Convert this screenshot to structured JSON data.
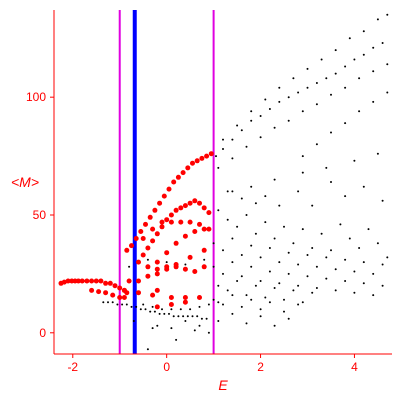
{
  "chart_data": {
    "type": "scatter",
    "title": "",
    "xlabel": "E",
    "ylabel": "<M>",
    "xlim": [
      -2.4,
      4.8
    ],
    "ylim": [
      -9,
      137
    ],
    "x_ticks": [
      -2,
      0,
      2,
      4
    ],
    "y_ticks": [
      0,
      50,
      100
    ],
    "x_tick_labels": [
      "-2",
      "0",
      "2",
      "4"
    ],
    "y_tick_labels": [
      "0",
      "50",
      "100"
    ],
    "grid": false,
    "colors": {
      "axis": "#ff0000",
      "points_black": "#000000",
      "points_red": "#ff0000",
      "line_blue": "#0000ff",
      "line_magenta": "#e000e0"
    },
    "vertical_lines": [
      {
        "x": -1.0,
        "color": "#e000e0"
      },
      {
        "x": -0.68,
        "color": "#0000ff"
      },
      {
        "x": 1.0,
        "color": "#e000e0"
      }
    ],
    "series": [
      {
        "color": "#ff0000",
        "points": [
          [
            -2.25,
            21
          ],
          [
            -2.18,
            21.5
          ],
          [
            -2.1,
            22
          ],
          [
            -2.02,
            22
          ],
          [
            -1.95,
            22
          ],
          [
            -1.88,
            22
          ],
          [
            -1.8,
            22
          ],
          [
            -1.7,
            22
          ],
          [
            -1.6,
            22
          ],
          [
            -1.5,
            22
          ],
          [
            -1.4,
            22
          ],
          [
            -1.3,
            21
          ],
          [
            -1.2,
            21
          ],
          [
            -1.1,
            20
          ],
          [
            -1.0,
            19
          ],
          [
            -0.9,
            18
          ],
          [
            -0.85,
            17
          ],
          [
            -1.6,
            18
          ],
          [
            -1.45,
            17.5
          ],
          [
            -1.3,
            17
          ],
          [
            -1.15,
            16
          ],
          [
            -1.0,
            15
          ],
          [
            -0.9,
            15
          ],
          [
            -0.85,
            35
          ],
          [
            -0.75,
            37
          ],
          [
            -0.65,
            40
          ],
          [
            -0.55,
            43
          ],
          [
            -0.45,
            46
          ],
          [
            -0.35,
            49
          ],
          [
            -0.25,
            52
          ],
          [
            -0.15,
            55
          ],
          [
            -0.05,
            58
          ],
          [
            0.05,
            61
          ],
          [
            0.15,
            64
          ],
          [
            0.25,
            66
          ],
          [
            0.35,
            68
          ],
          [
            0.45,
            70
          ],
          [
            0.55,
            72
          ],
          [
            0.65,
            73
          ],
          [
            0.75,
            74
          ],
          [
            0.85,
            75
          ],
          [
            0.95,
            76
          ],
          [
            -0.6,
            30
          ],
          [
            -0.5,
            33
          ],
          [
            -0.4,
            36
          ],
          [
            -0.3,
            39
          ],
          [
            -0.2,
            42
          ],
          [
            -0.1,
            45
          ],
          [
            0.0,
            48
          ],
          [
            0.1,
            50
          ],
          [
            0.2,
            52
          ],
          [
            0.3,
            53
          ],
          [
            0.4,
            54
          ],
          [
            0.5,
            55
          ],
          [
            0.6,
            56
          ],
          [
            0.7,
            55
          ],
          [
            0.8,
            53
          ],
          [
            0.9,
            51
          ],
          [
            -0.5,
            40
          ],
          [
            -0.3,
            44
          ],
          [
            -0.1,
            47
          ],
          [
            0.1,
            47
          ],
          [
            0.3,
            47
          ],
          [
            0.5,
            47
          ],
          [
            0.7,
            46
          ],
          [
            0.9,
            44
          ],
          [
            -0.4,
            28
          ],
          [
            -0.2,
            30
          ],
          [
            0.0,
            34
          ],
          [
            0.2,
            38
          ],
          [
            0.4,
            41
          ],
          [
            0.6,
            43
          ],
          [
            0.8,
            44
          ],
          [
            -0.2,
            25
          ],
          [
            0.0,
            27
          ],
          [
            0.2,
            29
          ],
          [
            0.5,
            32
          ],
          [
            0.8,
            35
          ],
          [
            -0.8,
            22
          ],
          [
            -0.6,
            22
          ],
          [
            -0.4,
            24
          ],
          [
            -0.2,
            27
          ],
          [
            0.0,
            28
          ],
          [
            0.2,
            28
          ],
          [
            0.4,
            27
          ],
          [
            0.6,
            26
          ],
          [
            0.8,
            28
          ],
          [
            -0.9,
            18
          ],
          [
            -0.6,
            17
          ],
          [
            -0.3,
            16
          ],
          [
            -0.2,
            18
          ],
          [
            0.1,
            15
          ],
          [
            0.4,
            15
          ],
          [
            0.7,
            15
          ],
          [
            -0.2,
            11
          ],
          [
            0.1,
            12
          ],
          [
            0.4,
            13
          ]
        ]
      },
      {
        "color": "#000000",
        "points": [
          [
            -1.35,
            13
          ],
          [
            -1.25,
            13
          ],
          [
            -1.15,
            13
          ],
          [
            -1.05,
            12
          ],
          [
            -0.95,
            12
          ],
          [
            -0.85,
            12
          ],
          [
            -0.75,
            11
          ],
          [
            -0.65,
            11
          ],
          [
            -0.55,
            10
          ],
          [
            -0.45,
            10
          ],
          [
            -0.35,
            9
          ],
          [
            -0.25,
            9
          ],
          [
            -0.15,
            8
          ],
          [
            -0.05,
            8
          ],
          [
            0.05,
            8
          ],
          [
            0.15,
            7
          ],
          [
            0.25,
            7
          ],
          [
            0.35,
            7
          ],
          [
            0.45,
            7
          ],
          [
            0.55,
            7
          ],
          [
            0.65,
            7
          ],
          [
            0.75,
            6
          ],
          [
            0.85,
            6
          ],
          [
            -0.5,
            12
          ],
          [
            -0.3,
            11
          ],
          [
            -0.1,
            10
          ],
          [
            0.1,
            10
          ],
          [
            0.3,
            10
          ],
          [
            0.5,
            10
          ],
          [
            0.7,
            11
          ],
          [
            0.9,
            12
          ],
          [
            1.1,
            13
          ],
          [
            1.05,
            75
          ],
          [
            1.2,
            78
          ],
          [
            1.4,
            82
          ],
          [
            1.6,
            86
          ],
          [
            1.8,
            90
          ],
          [
            2.0,
            92
          ],
          [
            2.2,
            95
          ],
          [
            2.4,
            98
          ],
          [
            2.6,
            100
          ],
          [
            2.8,
            102
          ],
          [
            3.0,
            104
          ],
          [
            3.2,
            106
          ],
          [
            3.4,
            108
          ],
          [
            3.6,
            110
          ],
          [
            3.8,
            113
          ],
          [
            4.0,
            116
          ],
          [
            4.2,
            118
          ],
          [
            4.4,
            121
          ],
          [
            4.6,
            123
          ],
          [
            1.2,
            82
          ],
          [
            1.5,
            88
          ],
          [
            1.8,
            94
          ],
          [
            2.1,
            99
          ],
          [
            2.4,
            104
          ],
          [
            2.7,
            108
          ],
          [
            3.0,
            112
          ],
          [
            3.3,
            116
          ],
          [
            3.6,
            120
          ],
          [
            3.9,
            125
          ],
          [
            4.2,
            128
          ],
          [
            4.5,
            133
          ],
          [
            4.7,
            135
          ],
          [
            1.4,
            74
          ],
          [
            1.7,
            79
          ],
          [
            2.0,
            83
          ],
          [
            2.3,
            87
          ],
          [
            2.6,
            90
          ],
          [
            2.9,
            94
          ],
          [
            3.2,
            97
          ],
          [
            3.5,
            101
          ],
          [
            3.8,
            104
          ],
          [
            4.1,
            108
          ],
          [
            4.4,
            111
          ],
          [
            4.7,
            114
          ],
          [
            2.9,
            75
          ],
          [
            3.2,
            80
          ],
          [
            3.5,
            85
          ],
          [
            3.8,
            89
          ],
          [
            4.1,
            94
          ],
          [
            4.4,
            98
          ],
          [
            4.7,
            102
          ],
          [
            1.3,
            60
          ],
          [
            1.8,
            62
          ],
          [
            2.3,
            65
          ],
          [
            2.9,
            68
          ],
          [
            3.4,
            70
          ],
          [
            4.0,
            73
          ],
          [
            4.5,
            76
          ],
          [
            1.1,
            70
          ],
          [
            1.4,
            60
          ],
          [
            1.6,
            57
          ],
          [
            1.9,
            55
          ],
          [
            2.1,
            58
          ],
          [
            2.4,
            54
          ],
          [
            2.8,
            60
          ],
          [
            3.1,
            54
          ],
          [
            3.5,
            64
          ],
          [
            3.8,
            58
          ],
          [
            4.2,
            62
          ],
          [
            4.6,
            56
          ],
          [
            1.1,
            52
          ],
          [
            1.3,
            48
          ],
          [
            1.5,
            45
          ],
          [
            1.7,
            50
          ],
          [
            1.9,
            42
          ],
          [
            2.1,
            47
          ],
          [
            2.3,
            40
          ],
          [
            2.5,
            45
          ],
          [
            2.7,
            38
          ],
          [
            2.9,
            44
          ],
          [
            3.1,
            36
          ],
          [
            3.3,
            42
          ],
          [
            3.5,
            35
          ],
          [
            3.7,
            46
          ],
          [
            3.9,
            40
          ],
          [
            4.1,
            36
          ],
          [
            4.3,
            44
          ],
          [
            4.5,
            38
          ],
          [
            4.7,
            32
          ],
          [
            1.0,
            38
          ],
          [
            1.2,
            35
          ],
          [
            1.4,
            40
          ],
          [
            1.6,
            33
          ],
          [
            1.8,
            37
          ],
          [
            2.0,
            32
          ],
          [
            2.2,
            36
          ],
          [
            2.4,
            30
          ],
          [
            2.6,
            34
          ],
          [
            2.8,
            29
          ],
          [
            3.0,
            33
          ],
          [
            3.2,
            28
          ],
          [
            3.4,
            32
          ],
          [
            3.6,
            27
          ],
          [
            3.8,
            31
          ],
          [
            4.0,
            26
          ],
          [
            4.2,
            30
          ],
          [
            4.4,
            25
          ],
          [
            4.6,
            29
          ],
          [
            1.0,
            28
          ],
          [
            1.2,
            25
          ],
          [
            1.4,
            30
          ],
          [
            1.6,
            24
          ],
          [
            1.8,
            28
          ],
          [
            2.0,
            22
          ],
          [
            2.2,
            26
          ],
          [
            2.4,
            21
          ],
          [
            2.6,
            25
          ],
          [
            2.8,
            20
          ],
          [
            3.0,
            24
          ],
          [
            3.2,
            19
          ],
          [
            3.4,
            23
          ],
          [
            3.6,
            18
          ],
          [
            3.8,
            22
          ],
          [
            4.0,
            17
          ],
          [
            4.2,
            21
          ],
          [
            4.4,
            16
          ],
          [
            4.6,
            20
          ],
          [
            1.1,
            20
          ],
          [
            1.3,
            18
          ],
          [
            1.5,
            22
          ],
          [
            1.7,
            16
          ],
          [
            1.9,
            20
          ],
          [
            2.1,
            15
          ],
          [
            2.3,
            19
          ],
          [
            2.5,
            14
          ],
          [
            2.7,
            18
          ],
          [
            2.9,
            13
          ],
          [
            3.1,
            17
          ],
          [
            1.0,
            14
          ],
          [
            1.2,
            12
          ],
          [
            1.4,
            16
          ],
          [
            1.6,
            11
          ],
          [
            1.8,
            14
          ],
          [
            2.0,
            10
          ],
          [
            2.2,
            13
          ],
          [
            2.5,
            9
          ],
          [
            2.8,
            12
          ],
          [
            1.1,
            5
          ],
          [
            1.4,
            8
          ],
          [
            1.7,
            4
          ],
          [
            2.0,
            7
          ],
          [
            2.3,
            3
          ],
          [
            2.6,
            6
          ],
          [
            -0.2,
            3
          ],
          [
            0.1,
            2
          ],
          [
            0.4,
            5
          ],
          [
            0.7,
            3
          ],
          [
            0.2,
            -3
          ],
          [
            -0.4,
            -7
          ],
          [
            -0.8,
            28
          ],
          [
            -0.4,
            31
          ],
          [
            0.0,
            30
          ],
          [
            0.4,
            29
          ],
          [
            0.8,
            31
          ],
          [
            -0.7,
            5
          ],
          [
            -0.3,
            2
          ],
          [
            0.6,
            1
          ],
          [
            0.9,
            0
          ]
        ]
      }
    ]
  }
}
